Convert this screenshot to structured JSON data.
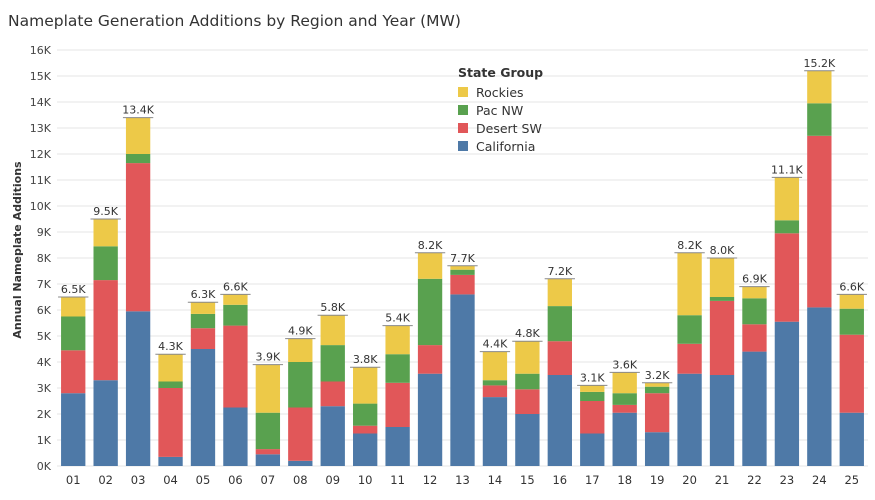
{
  "chart_data": {
    "type": "bar",
    "stacked": true,
    "title": "Nameplate Generation Additions by Region and Year (MW)",
    "ylabel": "Annual Nameplate Additions",
    "xlabel": "",
    "ylim": [
      0,
      16000
    ],
    "yticks": [
      0,
      1000,
      2000,
      3000,
      4000,
      5000,
      6000,
      7000,
      8000,
      9000,
      10000,
      11000,
      12000,
      13000,
      14000,
      15000,
      16000
    ],
    "ytick_labels": [
      "0K",
      "1K",
      "2K",
      "3K",
      "4K",
      "5K",
      "6K",
      "7K",
      "8K",
      "9K",
      "10K",
      "11K",
      "12K",
      "13K",
      "14K",
      "15K",
      "16K"
    ],
    "categories": [
      "01",
      "02",
      "03",
      "04",
      "05",
      "06",
      "07",
      "08",
      "09",
      "10",
      "11",
      "12",
      "13",
      "14",
      "15",
      "16",
      "17",
      "18",
      "19",
      "20",
      "21",
      "22",
      "23",
      "24",
      "25"
    ],
    "totals_labels": [
      "6.5K",
      "9.5K",
      "13.4K",
      "4.3K",
      "6.3K",
      "6.6K",
      "3.9K",
      "4.9K",
      "5.8K",
      "3.8K",
      "5.4K",
      "8.2K",
      "7.7K",
      "4.4K",
      "4.8K",
      "7.2K",
      "3.1K",
      "3.6K",
      "3.2K",
      "8.2K",
      "8.0K",
      "6.9K",
      "11.1K",
      "15.2K",
      "6.6K"
    ],
    "legend_title": "State Group",
    "legend_order": [
      "Rockies",
      "Pac NW",
      "Desert SW",
      "California"
    ],
    "series": [
      {
        "name": "California",
        "color": "#4e79a7",
        "values": [
          2800,
          3300,
          5950,
          350,
          4500,
          2250,
          450,
          200,
          2300,
          1250,
          1500,
          3550,
          6600,
          2650,
          2000,
          3500,
          1250,
          2050,
          1300,
          3550,
          3500,
          4400,
          5550,
          6100,
          2050
        ]
      },
      {
        "name": "Desert SW",
        "color": "#e15759",
        "values": [
          1650,
          3850,
          5700,
          2650,
          800,
          3150,
          200,
          2050,
          950,
          300,
          1700,
          1100,
          750,
          450,
          950,
          1300,
          1250,
          300,
          1500,
          1150,
          2850,
          1050,
          3400,
          6600,
          3000
        ]
      },
      {
        "name": "Pac NW",
        "color": "#59a14f",
        "values": [
          1300,
          1300,
          350,
          250,
          550,
          800,
          1400,
          1750,
          1400,
          850,
          1100,
          2550,
          200,
          200,
          600,
          1350,
          350,
          450,
          250,
          1100,
          150,
          1000,
          500,
          1250,
          1000
        ]
      },
      {
        "name": "Rockies",
        "color": "#edc948",
        "values": [
          750,
          1050,
          1400,
          1050,
          450,
          400,
          1850,
          900,
          1150,
          1400,
          1100,
          1000,
          150,
          1100,
          1250,
          1050,
          250,
          800,
          150,
          2400,
          1500,
          450,
          1650,
          1250,
          550
        ]
      }
    ]
  }
}
